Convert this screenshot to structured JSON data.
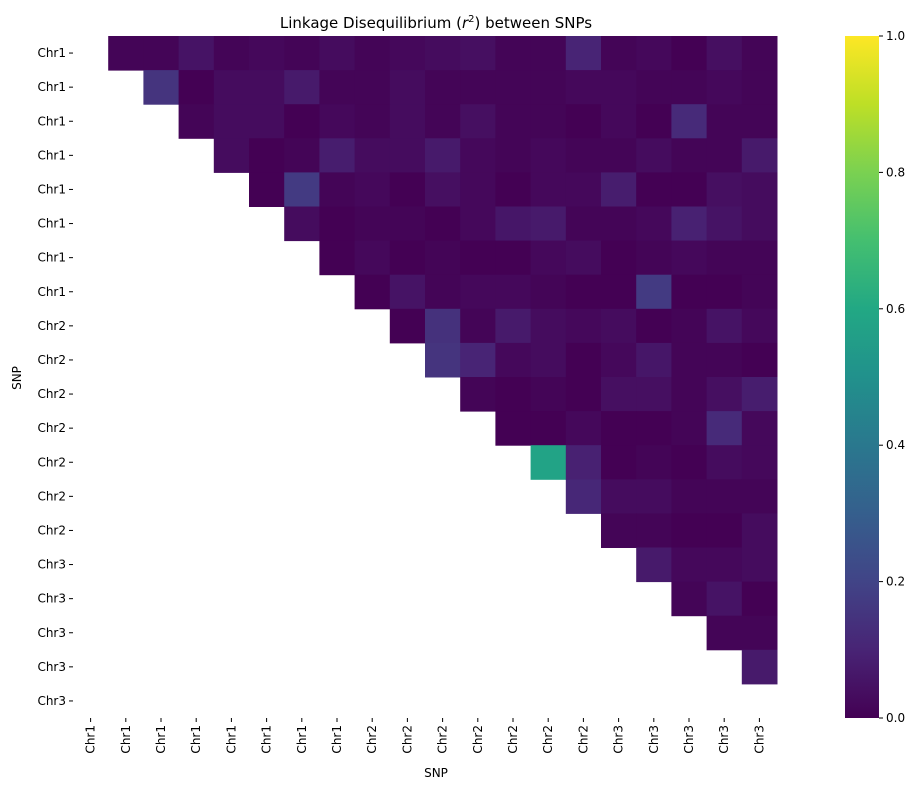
{
  "chart_data": {
    "type": "heatmap",
    "title": "Linkage Disequilibrium (r²) between SNPs",
    "title_parts": {
      "prefix": "Linkage Disequilibrium (",
      "var": "r",
      "sup": "2",
      "suffix": ") between SNPs"
    },
    "xlabel": "SNP",
    "ylabel": "SNP",
    "row_labels": [
      "Chr1",
      "Chr1",
      "Chr1",
      "Chr1",
      "Chr1",
      "Chr1",
      "Chr1",
      "Chr1",
      "Chr2",
      "Chr2",
      "Chr2",
      "Chr2",
      "Chr2",
      "Chr2",
      "Chr2",
      "Chr3",
      "Chr3",
      "Chr3",
      "Chr3",
      "Chr3"
    ],
    "col_labels": [
      "Chr1",
      "Chr1",
      "Chr1",
      "Chr1",
      "Chr1",
      "Chr1",
      "Chr1",
      "Chr1",
      "Chr2",
      "Chr2",
      "Chr2",
      "Chr2",
      "Chr2",
      "Chr2",
      "Chr2",
      "Chr3",
      "Chr3",
      "Chr3",
      "Chr3",
      "Chr3"
    ],
    "colormap": "viridis",
    "colorbar": {
      "min": 0.0,
      "max": 1.0,
      "ticks": [
        "0.0",
        "0.2",
        "0.4",
        "0.6",
        "0.8",
        "1.0"
      ]
    },
    "mask": "lower triangle and diagonal",
    "values": [
      [
        null,
        0.01,
        0.01,
        0.05,
        0.01,
        0.02,
        0.01,
        0.03,
        0.01,
        0.02,
        0.03,
        0.04,
        0.01,
        0.01,
        0.1,
        0.01,
        0.02,
        0.0,
        0.04,
        0.01
      ],
      [
        null,
        null,
        0.15,
        0.0,
        0.03,
        0.03,
        0.07,
        0.01,
        0.01,
        0.03,
        0.01,
        0.01,
        0.01,
        0.01,
        0.02,
        0.02,
        0.01,
        0.01,
        0.02,
        0.01
      ],
      [
        null,
        null,
        null,
        0.01,
        0.03,
        0.03,
        0.0,
        0.02,
        0.01,
        0.03,
        0.01,
        0.04,
        0.01,
        0.01,
        0.0,
        0.02,
        0.0,
        0.12,
        0.01,
        0.01
      ],
      [
        null,
        null,
        null,
        null,
        0.03,
        0.0,
        0.01,
        0.08,
        0.03,
        0.03,
        0.07,
        0.02,
        0.01,
        0.02,
        0.01,
        0.01,
        0.03,
        0.01,
        0.01,
        0.07
      ],
      [
        null,
        null,
        null,
        null,
        null,
        0.0,
        0.17,
        0.01,
        0.02,
        0.0,
        0.04,
        0.02,
        0.0,
        0.02,
        0.02,
        0.08,
        0.0,
        0.0,
        0.04,
        0.03
      ],
      [
        null,
        null,
        null,
        null,
        null,
        null,
        0.03,
        0.0,
        0.01,
        0.01,
        0.0,
        0.02,
        0.06,
        0.07,
        0.01,
        0.01,
        0.02,
        0.09,
        0.05,
        0.03
      ],
      [
        null,
        null,
        null,
        null,
        null,
        null,
        null,
        0.0,
        0.02,
        0.0,
        0.01,
        0.0,
        0.0,
        0.02,
        0.03,
        0.0,
        0.01,
        0.02,
        0.01,
        0.01
      ],
      [
        null,
        null,
        null,
        null,
        null,
        null,
        null,
        null,
        0.0,
        0.05,
        0.01,
        0.02,
        0.02,
        0.01,
        0.0,
        0.0,
        0.17,
        0.0,
        0.0,
        0.01
      ],
      [
        null,
        null,
        null,
        null,
        null,
        null,
        null,
        null,
        null,
        0.0,
        0.14,
        0.01,
        0.07,
        0.03,
        0.02,
        0.03,
        0.0,
        0.01,
        0.05,
        0.02
      ],
      [
        null,
        null,
        null,
        null,
        null,
        null,
        null,
        null,
        null,
        null,
        0.15,
        0.1,
        0.02,
        0.03,
        0.0,
        0.02,
        0.06,
        0.01,
        0.01,
        0.0
      ],
      [
        null,
        null,
        null,
        null,
        null,
        null,
        null,
        null,
        null,
        null,
        null,
        0.01,
        0.0,
        0.01,
        0.0,
        0.04,
        0.04,
        0.01,
        0.04,
        0.08
      ],
      [
        null,
        null,
        null,
        null,
        null,
        null,
        null,
        null,
        null,
        null,
        null,
        null,
        0.0,
        0.0,
        0.02,
        0.0,
        0.0,
        0.01,
        0.12,
        0.02
      ],
      [
        null,
        null,
        null,
        null,
        null,
        null,
        null,
        null,
        null,
        null,
        null,
        null,
        null,
        0.58,
        0.09,
        0.0,
        0.01,
        0.0,
        0.03,
        0.02
      ],
      [
        null,
        null,
        null,
        null,
        null,
        null,
        null,
        null,
        null,
        null,
        null,
        null,
        null,
        null,
        0.11,
        0.03,
        0.03,
        0.01,
        0.01,
        0.01
      ],
      [
        null,
        null,
        null,
        null,
        null,
        null,
        null,
        null,
        null,
        null,
        null,
        null,
        null,
        null,
        null,
        0.01,
        0.01,
        0.0,
        0.0,
        0.03
      ],
      [
        null,
        null,
        null,
        null,
        null,
        null,
        null,
        null,
        null,
        null,
        null,
        null,
        null,
        null,
        null,
        null,
        0.07,
        0.02,
        0.02,
        0.03
      ],
      [
        null,
        null,
        null,
        null,
        null,
        null,
        null,
        null,
        null,
        null,
        null,
        null,
        null,
        null,
        null,
        null,
        null,
        0.01,
        0.05,
        0.0
      ],
      [
        null,
        null,
        null,
        null,
        null,
        null,
        null,
        null,
        null,
        null,
        null,
        null,
        null,
        null,
        null,
        null,
        null,
        null,
        0.01,
        0.01
      ],
      [
        null,
        null,
        null,
        null,
        null,
        null,
        null,
        null,
        null,
        null,
        null,
        null,
        null,
        null,
        null,
        null,
        null,
        null,
        null,
        0.07
      ],
      [
        null,
        null,
        null,
        null,
        null,
        null,
        null,
        null,
        null,
        null,
        null,
        null,
        null,
        null,
        null,
        null,
        null,
        null,
        null,
        null
      ]
    ]
  }
}
